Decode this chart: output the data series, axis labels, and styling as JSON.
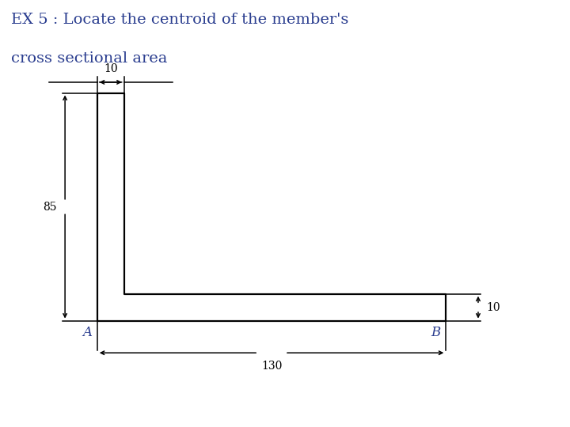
{
  "title_line1": "EX 5 : Locate the centroid of the member's",
  "title_line2": "cross sectional area",
  "title_color": "#2a3d8f",
  "title_fontsize": 14,
  "bg_color": "#ffffff",
  "shape_color": "#000000",
  "shape_lw": 1.6,
  "dim_lw": 1.1,
  "dim_color": "#000000",
  "label_A": "A",
  "label_B": "B",
  "label_10_top": "10",
  "label_85": "85",
  "label_130": "130",
  "label_10_right": "10",
  "label_color": "#2a3d8f"
}
